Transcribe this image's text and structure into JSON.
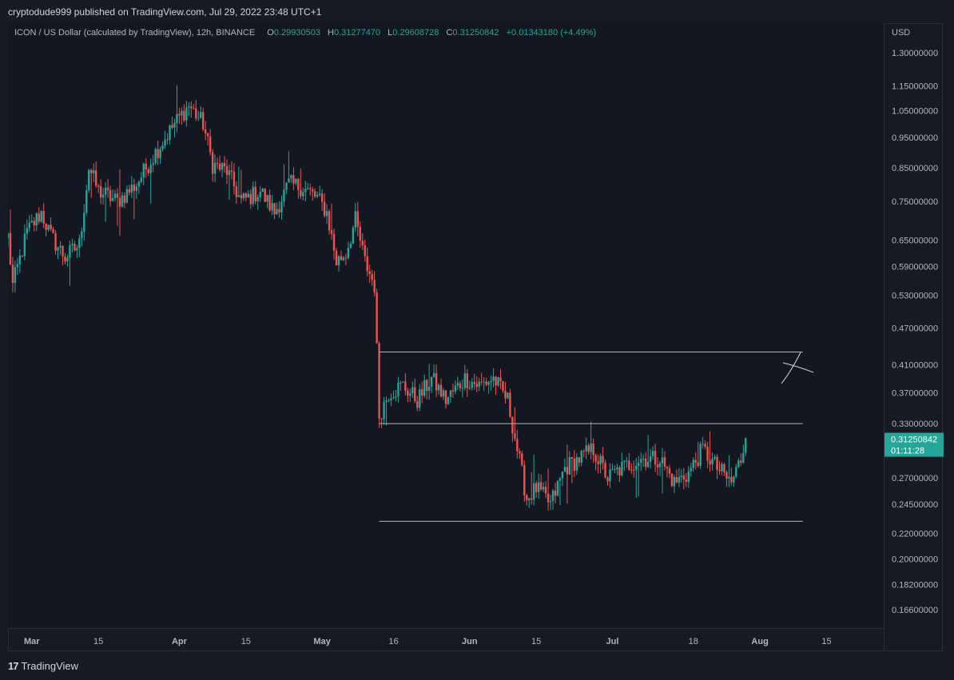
{
  "header": {
    "publisher_line": "cryptodude999 published on TradingView.com, Jul 29, 2022 23:48 UTC+1"
  },
  "legend": {
    "symbol": "ICON / US Dollar (calculated by TradingView), 12h, BINANCE",
    "o_label": "O",
    "o_value": "0.29930503",
    "h_label": "H",
    "h_value": "0.31277470",
    "l_label": "L",
    "l_value": "0.29608728",
    "c_label": "C",
    "c_value": "0.31250842",
    "change": "+0.01343180 (+4.49%)"
  },
  "axis": {
    "currency": "USD",
    "price_ticks": [
      "1.30000000",
      "1.15000000",
      "1.05000000",
      "0.95000000",
      "0.85000000",
      "0.75000000",
      "0.65000000",
      "0.59000000",
      "0.53000000",
      "0.47000000",
      "0.41000000",
      "0.37000000",
      "0.33000000",
      "0.27000000",
      "0.24500000",
      "0.22000000",
      "0.20000000",
      "0.18200000",
      "0.16600000"
    ],
    "time_ticks": [
      "Mar",
      "15",
      "Apr",
      "15",
      "May",
      "16",
      "Jun",
      "15",
      "Jul",
      "18",
      "Aug",
      "15"
    ],
    "last_price": "0.31250842",
    "countdown": "01:11:28"
  },
  "footer": {
    "brand": "TradingView",
    "logo_glyph": "17"
  },
  "colors": {
    "up": "#26a69a",
    "down": "#ef5350",
    "background": "#131722",
    "grid": "#2a2e39",
    "text": "#b2b5be"
  },
  "chart_data": {
    "type": "candlestick",
    "title": "ICON / US Dollar (calculated by TradingView), 12h, BINANCE",
    "scale": "log",
    "ylim": [
      0.155,
      1.45
    ],
    "xlim": [
      "2022-02-24",
      "2022-08-27"
    ],
    "x_tick_dates": [
      "2022-03-01",
      "2022-03-15",
      "2022-04-01",
      "2022-04-15",
      "2022-05-01",
      "2022-05-16",
      "2022-06-01",
      "2022-06-15",
      "2022-07-01",
      "2022-07-18",
      "2022-08-01",
      "2022-08-15"
    ],
    "y_ticks": [
      1.3,
      1.15,
      1.05,
      0.95,
      0.85,
      0.75,
      0.65,
      0.59,
      0.53,
      0.47,
      0.41,
      0.37,
      0.33,
      0.27,
      0.245,
      0.22,
      0.2,
      0.182,
      0.166
    ],
    "grid": false,
    "interval": "12h",
    "path": [
      [
        "2022-02-24",
        0.66
      ],
      [
        "2022-02-25",
        0.55
      ],
      [
        "2022-02-28",
        0.67
      ],
      [
        "2022-03-03",
        0.72
      ],
      [
        "2022-03-05",
        0.66
      ],
      [
        "2022-03-08",
        0.61
      ],
      [
        "2022-03-11",
        0.64
      ],
      [
        "2022-03-13",
        0.85
      ],
      [
        "2022-03-15",
        0.78
      ],
      [
        "2022-03-19",
        0.75
      ],
      [
        "2022-03-23",
        0.8
      ],
      [
        "2022-03-27",
        0.9
      ],
      [
        "2022-03-31",
        1.0
      ],
      [
        "2022-04-03",
        1.07
      ],
      [
        "2022-04-06",
        1.0
      ],
      [
        "2022-04-08",
        0.86
      ],
      [
        "2022-04-11",
        0.84
      ],
      [
        "2022-04-14",
        0.75
      ],
      [
        "2022-04-18",
        0.78
      ],
      [
        "2022-04-21",
        0.72
      ],
      [
        "2022-04-24",
        0.8
      ],
      [
        "2022-04-27",
        0.79
      ],
      [
        "2022-04-30",
        0.76
      ],
      [
        "2022-05-02",
        0.72
      ],
      [
        "2022-05-04",
        0.6
      ],
      [
        "2022-05-06",
        0.62
      ],
      [
        "2022-05-08",
        0.7
      ],
      [
        "2022-05-10",
        0.6
      ],
      [
        "2022-05-12",
        0.55
      ],
      [
        "2022-05-13",
        0.34
      ],
      [
        "2022-05-15",
        0.37
      ],
      [
        "2022-05-18",
        0.38
      ],
      [
        "2022-05-21",
        0.36
      ],
      [
        "2022-05-24",
        0.39
      ],
      [
        "2022-05-27",
        0.36
      ],
      [
        "2022-05-31",
        0.39
      ],
      [
        "2022-06-03",
        0.38
      ],
      [
        "2022-06-06",
        0.39
      ],
      [
        "2022-06-09",
        0.36
      ],
      [
        "2022-06-11",
        0.3
      ],
      [
        "2022-06-13",
        0.25
      ],
      [
        "2022-06-15",
        0.26
      ],
      [
        "2022-06-18",
        0.245
      ],
      [
        "2022-06-21",
        0.28
      ],
      [
        "2022-06-24",
        0.29
      ],
      [
        "2022-06-27",
        0.3
      ],
      [
        "2022-06-30",
        0.27
      ],
      [
        "2022-07-03",
        0.28
      ],
      [
        "2022-07-07",
        0.29
      ],
      [
        "2022-07-11",
        0.29
      ],
      [
        "2022-07-14",
        0.265
      ],
      [
        "2022-07-17",
        0.275
      ],
      [
        "2022-07-20",
        0.3
      ],
      [
        "2022-07-23",
        0.28
      ],
      [
        "2022-07-26",
        0.265
      ],
      [
        "2022-07-28",
        0.29
      ],
      [
        "2022-07-29",
        0.3125
      ]
    ],
    "horizontal_lines": [
      {
        "price": 0.43,
        "from": "2022-05-13",
        "to": "2022-08-10"
      },
      {
        "price": 0.33,
        "from": "2022-05-13",
        "to": "2022-08-10"
      },
      {
        "price": 0.23,
        "from": "2022-05-13",
        "to": "2022-08-10"
      }
    ],
    "last": {
      "price": 0.3125084,
      "time": "2022-07-29"
    }
  }
}
